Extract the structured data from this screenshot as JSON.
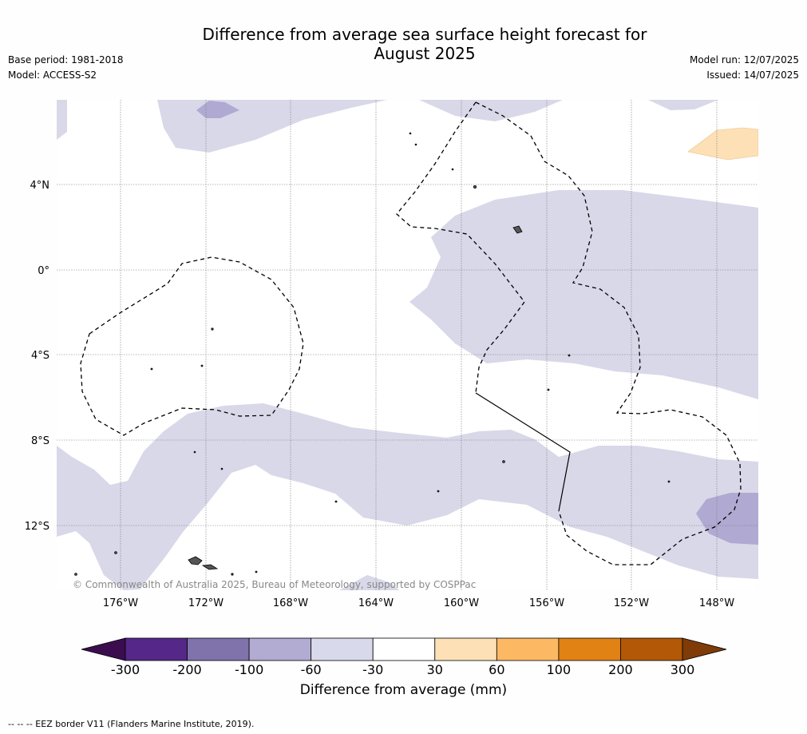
{
  "title_line1": "Difference from average sea surface height forecast for",
  "title_line2": "August 2025",
  "meta_left": [
    "Base period: 1981-2018",
    "Model: ACCESS-S2"
  ],
  "meta_right": [
    "Model run: 12/07/2025",
    "Issued: 14/07/2025"
  ],
  "map": {
    "lat_labels": [
      "4°N",
      "0°",
      "4°S",
      "8°S",
      "12°S"
    ],
    "lon_labels": [
      "176°W",
      "172°W",
      "168°W",
      "164°W",
      "160°W",
      "156°W",
      "152°W",
      "148°W"
    ],
    "copyright": "© Commonwealth of Australia 2025, Bureau of Meteorology, supported by COSPPac",
    "colors": {
      "light_purple": "#d8d8e9",
      "mid_purple": "#b0a9d2",
      "light_orange": "#fde0b6"
    }
  },
  "colorbar": {
    "labels": [
      "-300",
      "-200",
      "-100",
      "-60",
      "-30",
      "30",
      "60",
      "100",
      "200",
      "300"
    ],
    "colors": [
      "#3b0d4f",
      "#542788",
      "#8073ac",
      "#b2abd2",
      "#d8daeb",
      "#ffffff",
      "#fee0b6",
      "#fdb863",
      "#e08214",
      "#b35806",
      "#7f3b08"
    ],
    "title": "Difference from average (mm)"
  },
  "footer": "--  --  -- EEZ border V11 (Flanders Marine Institute, 2019)."
}
